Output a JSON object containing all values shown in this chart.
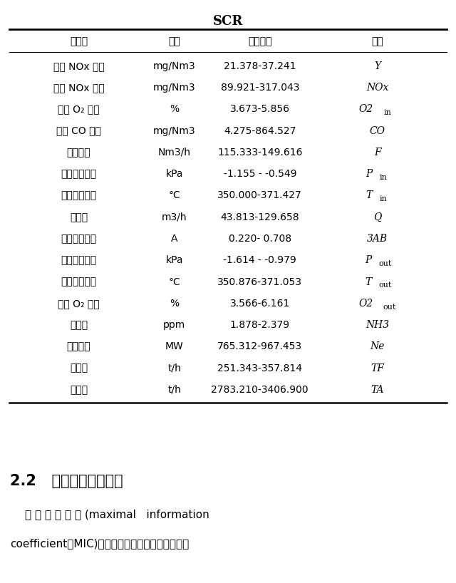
{
  "title": "SCR",
  "headers": [
    "变量名",
    "单位",
    "变化范围",
    "标签"
  ],
  "rows": [
    [
      "出口 NOx 浓度",
      "mg/Nm3",
      "21.378-37.241",
      "Y",
      "italic"
    ],
    [
      "入口 NOx 浓度",
      "mg/Nm3",
      "89.921-317.043",
      "NOx",
      "italic"
    ],
    [
      "入口 O₂ 浓度",
      "%",
      "3.673-5.856",
      "O2in",
      "italic_sub"
    ],
    [
      "入口 CO 浓度",
      "mg/Nm3",
      "4.275-864.527",
      "CO",
      "italic"
    ],
    [
      "烟气流量",
      "Nm3/h",
      "115.333-149.616",
      "F",
      "italic"
    ],
    [
      "入口烟气压力",
      "kPa",
      "-1.155 - -0.549",
      "Pin",
      "italic_sub"
    ],
    [
      "入口烟气温度",
      "°C",
      "350.000-371.427",
      "Tin",
      "italic_sub"
    ],
    [
      "加氨量",
      "m3/h",
      "43.813-129.658",
      "Q",
      "italic"
    ],
    [
      "稀释风机电流",
      "A",
      "0.220- 0.708",
      "3AB",
      "italic"
    ],
    [
      "出口烟气压力",
      "kPa",
      "-1.614 - -0.979",
      "Pout",
      "italic_sub"
    ],
    [
      "出口烟气温度",
      "°C",
      "350.876-371.053",
      "Tout",
      "italic_sub"
    ],
    [
      "出口 O₂ 浓度",
      "%",
      "3.566-6.161",
      "O2out",
      "italic_sub"
    ],
    [
      "氨逃逸",
      "ppm",
      "1.878-2.379",
      "NH3",
      "italic"
    ],
    [
      "机组负荷",
      "MW",
      "765.312-967.453",
      "Ne",
      "italic"
    ],
    [
      "总煤量",
      "t/h",
      "251.343-357.814",
      "TF",
      "italic"
    ],
    [
      "总风量",
      "t/h",
      "2783.210-3406.900",
      "TA",
      "italic"
    ]
  ],
  "section_num": "2.2",
  "section_text": "相关参数延迟时间",
  "body_text_line1": "最 大 信 息 系 数 (maximal   information",
  "body_text_line2": "coefficient，MIC)是一种衡量变量之间非线性关系",
  "bg_color": "#ffffff",
  "title_fontsize": 13,
  "header_fontsize": 10,
  "cell_fontsize": 10,
  "label_fontsize": 10,
  "section_fontsize": 15,
  "body_fontsize": 11
}
